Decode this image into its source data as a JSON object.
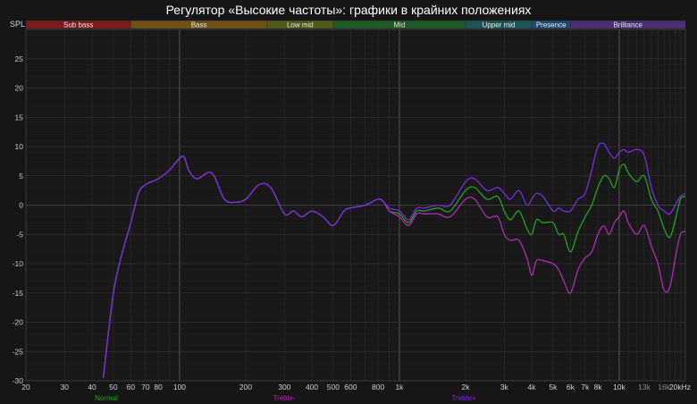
{
  "chart_data": {
    "type": "line",
    "title": "Регулятор «Высокие частоты»: графики в крайних положениях",
    "ylabel": "SPL",
    "xscale": "log",
    "xlim": [
      20,
      20000
    ],
    "ylim": [
      -30,
      30
    ],
    "grid": true,
    "x_ticks": [
      {
        "v": 20,
        "label": "20"
      },
      {
        "v": 30,
        "label": "30"
      },
      {
        "v": 40,
        "label": "40"
      },
      {
        "v": 50,
        "label": "50"
      },
      {
        "v": 60,
        "label": "60"
      },
      {
        "v": 70,
        "label": "70"
      },
      {
        "v": 80,
        "label": "80"
      },
      {
        "v": 100,
        "label": "100"
      },
      {
        "v": 200,
        "label": "200"
      },
      {
        "v": 300,
        "label": "300"
      },
      {
        "v": 400,
        "label": "400"
      },
      {
        "v": 500,
        "label": "500"
      },
      {
        "v": 600,
        "label": "600"
      },
      {
        "v": 800,
        "label": "800"
      },
      {
        "v": 1000,
        "label": "1k"
      },
      {
        "v": 2000,
        "label": "2k"
      },
      {
        "v": 3000,
        "label": "3k"
      },
      {
        "v": 4000,
        "label": "4k"
      },
      {
        "v": 5000,
        "label": "5k"
      },
      {
        "v": 6000,
        "label": "6k"
      },
      {
        "v": 7000,
        "label": "7k"
      },
      {
        "v": 8000,
        "label": "8k"
      },
      {
        "v": 10000,
        "label": "10k"
      },
      {
        "v": 13000,
        "label": "13k"
      },
      {
        "v": 16000,
        "label": "16k"
      },
      {
        "v": 20000,
        "label": "20kHz"
      }
    ],
    "y_ticks": [
      25,
      20,
      15,
      10,
      5,
      0,
      -5,
      -10,
      -15,
      -20,
      -25,
      -30
    ],
    "bands": [
      {
        "name": "Sub bass",
        "from": 20,
        "to": 60,
        "color": "#7a1c1c"
      },
      {
        "name": "Bass",
        "from": 60,
        "to": 250,
        "color": "#6e5214"
      },
      {
        "name": "Low mid",
        "from": 250,
        "to": 500,
        "color": "#4e5a18"
      },
      {
        "name": "Mid",
        "from": 500,
        "to": 2000,
        "color": "#1d5a24"
      },
      {
        "name": "Upper mid",
        "from": 2000,
        "to": 4000,
        "color": "#1d5458"
      },
      {
        "name": "Presence",
        "from": 4000,
        "to": 6000,
        "color": "#1e4a72"
      },
      {
        "name": "Brilliance",
        "from": 6000,
        "to": 20000,
        "color": "#4a2f72"
      }
    ],
    "series": [
      {
        "name": "Normal",
        "color": "#1fa51f",
        "points": [
          [
            45,
            -29.5
          ],
          [
            50,
            -15
          ],
          [
            55,
            -8
          ],
          [
            60,
            -3
          ],
          [
            65,
            2
          ],
          [
            70,
            3.5
          ],
          [
            80,
            4.5
          ],
          [
            90,
            6
          ],
          [
            100,
            8
          ],
          [
            105,
            8.2
          ],
          [
            110,
            6
          ],
          [
            120,
            4.5
          ],
          [
            140,
            5.5
          ],
          [
            160,
            1
          ],
          [
            180,
            0.5
          ],
          [
            200,
            1
          ],
          [
            230,
            3.5
          ],
          [
            260,
            3
          ],
          [
            300,
            -1.5
          ],
          [
            330,
            -1
          ],
          [
            360,
            -2
          ],
          [
            400,
            -1
          ],
          [
            450,
            -2
          ],
          [
            500,
            -3.5
          ],
          [
            560,
            -1
          ],
          [
            600,
            -0.5
          ],
          [
            700,
            0
          ],
          [
            800,
            1
          ],
          [
            850,
            0.5
          ],
          [
            900,
            -1
          ],
          [
            1000,
            -1.5
          ],
          [
            1100,
            -3
          ],
          [
            1200,
            -1
          ],
          [
            1300,
            -1
          ],
          [
            1500,
            -0.5
          ],
          [
            1700,
            -1
          ],
          [
            2000,
            2.5
          ],
          [
            2200,
            3
          ],
          [
            2500,
            1
          ],
          [
            2800,
            1.5
          ],
          [
            3000,
            -1
          ],
          [
            3200,
            -2.5
          ],
          [
            3500,
            -1
          ],
          [
            3800,
            -4
          ],
          [
            4000,
            -5
          ],
          [
            4200,
            -2.5
          ],
          [
            4500,
            -3
          ],
          [
            5000,
            -3
          ],
          [
            5300,
            -5
          ],
          [
            5600,
            -5
          ],
          [
            6000,
            -8
          ],
          [
            6500,
            -4.5
          ],
          [
            7000,
            -2
          ],
          [
            7500,
            0
          ],
          [
            8000,
            3
          ],
          [
            8500,
            5
          ],
          [
            9000,
            4.5
          ],
          [
            9500,
            3
          ],
          [
            10000,
            6
          ],
          [
            10500,
            7
          ],
          [
            11000,
            5.5
          ],
          [
            12000,
            4
          ],
          [
            13000,
            5
          ],
          [
            14000,
            1
          ],
          [
            15000,
            -1
          ],
          [
            16000,
            -4
          ],
          [
            17000,
            -5.5
          ],
          [
            18000,
            -2.5
          ],
          [
            19000,
            1
          ],
          [
            20000,
            1.5
          ]
        ]
      },
      {
        "name": "Treble-",
        "color": "#b229b5",
        "points": [
          [
            45,
            -29.5
          ],
          [
            50,
            -15
          ],
          [
            55,
            -8
          ],
          [
            60,
            -3
          ],
          [
            65,
            2
          ],
          [
            70,
            3.5
          ],
          [
            80,
            4.5
          ],
          [
            90,
            6
          ],
          [
            100,
            8
          ],
          [
            105,
            8.2
          ],
          [
            110,
            6
          ],
          [
            120,
            4.5
          ],
          [
            140,
            5.5
          ],
          [
            160,
            1
          ],
          [
            180,
            0.5
          ],
          [
            200,
            1
          ],
          [
            230,
            3.5
          ],
          [
            260,
            3
          ],
          [
            300,
            -1.5
          ],
          [
            330,
            -1
          ],
          [
            360,
            -2
          ],
          [
            400,
            -1
          ],
          [
            450,
            -2
          ],
          [
            500,
            -3.5
          ],
          [
            560,
            -1
          ],
          [
            600,
            -0.5
          ],
          [
            700,
            0
          ],
          [
            800,
            1
          ],
          [
            850,
            0.5
          ],
          [
            900,
            -1
          ],
          [
            1000,
            -2
          ],
          [
            1100,
            -3.5
          ],
          [
            1200,
            -1.5
          ],
          [
            1300,
            -1.5
          ],
          [
            1500,
            -1.5
          ],
          [
            1700,
            -2
          ],
          [
            2000,
            1
          ],
          [
            2200,
            1
          ],
          [
            2500,
            -2
          ],
          [
            2800,
            -2
          ],
          [
            3000,
            -5
          ],
          [
            3200,
            -6
          ],
          [
            3500,
            -6
          ],
          [
            3800,
            -9
          ],
          [
            4000,
            -12
          ],
          [
            4200,
            -9.5
          ],
          [
            4500,
            -9.5
          ],
          [
            5000,
            -10
          ],
          [
            5300,
            -11
          ],
          [
            5600,
            -13
          ],
          [
            6000,
            -15
          ],
          [
            6500,
            -11
          ],
          [
            7000,
            -9
          ],
          [
            7500,
            -8
          ],
          [
            8000,
            -5
          ],
          [
            8500,
            -3.5
          ],
          [
            9000,
            -5
          ],
          [
            9500,
            -3
          ],
          [
            10000,
            -2
          ],
          [
            10500,
            -1
          ],
          [
            11000,
            -3
          ],
          [
            12000,
            -5
          ],
          [
            13000,
            -3.5
          ],
          [
            14000,
            -7
          ],
          [
            15000,
            -10
          ],
          [
            16000,
            -14.5
          ],
          [
            17000,
            -14
          ],
          [
            18000,
            -9
          ],
          [
            19000,
            -5
          ],
          [
            20000,
            -4.5
          ]
        ]
      },
      {
        "name": "Treble+",
        "color": "#7a2ce0",
        "points": [
          [
            45,
            -29.5
          ],
          [
            50,
            -15
          ],
          [
            55,
            -8
          ],
          [
            60,
            -3
          ],
          [
            65,
            2
          ],
          [
            70,
            3.5
          ],
          [
            80,
            4.5
          ],
          [
            90,
            6
          ],
          [
            100,
            8
          ],
          [
            105,
            8.2
          ],
          [
            110,
            6
          ],
          [
            120,
            4.5
          ],
          [
            140,
            5.5
          ],
          [
            160,
            1
          ],
          [
            180,
            0.5
          ],
          [
            200,
            1
          ],
          [
            230,
            3.5
          ],
          [
            260,
            3
          ],
          [
            300,
            -1.5
          ],
          [
            330,
            -1
          ],
          [
            360,
            -2
          ],
          [
            400,
            -1
          ],
          [
            450,
            -2
          ],
          [
            500,
            -3.5
          ],
          [
            560,
            -1
          ],
          [
            600,
            -0.5
          ],
          [
            700,
            0
          ],
          [
            800,
            1
          ],
          [
            850,
            0.5
          ],
          [
            900,
            -0.5
          ],
          [
            1000,
            -1
          ],
          [
            1100,
            -2.5
          ],
          [
            1200,
            -0.5
          ],
          [
            1300,
            -0.5
          ],
          [
            1500,
            0
          ],
          [
            1700,
            0
          ],
          [
            2000,
            4
          ],
          [
            2200,
            4.5
          ],
          [
            2500,
            2.5
          ],
          [
            2800,
            3
          ],
          [
            3000,
            2
          ],
          [
            3200,
            1
          ],
          [
            3500,
            2.5
          ],
          [
            3800,
            0
          ],
          [
            4000,
            1
          ],
          [
            4200,
            2
          ],
          [
            4500,
            1.5
          ],
          [
            5000,
            -1
          ],
          [
            5300,
            -0.5
          ],
          [
            5600,
            -1
          ],
          [
            6000,
            -1
          ],
          [
            6500,
            1
          ],
          [
            7000,
            2
          ],
          [
            7500,
            6
          ],
          [
            8000,
            10
          ],
          [
            8500,
            10.5
          ],
          [
            9000,
            9
          ],
          [
            9500,
            8
          ],
          [
            10000,
            9
          ],
          [
            10500,
            9.5
          ],
          [
            11000,
            9
          ],
          [
            12000,
            9.5
          ],
          [
            13000,
            8.5
          ],
          [
            14000,
            3
          ],
          [
            15000,
            0
          ],
          [
            16000,
            -1
          ],
          [
            17000,
            -1.5
          ],
          [
            18000,
            0
          ],
          [
            19000,
            1.5
          ],
          [
            20000,
            2
          ]
        ]
      }
    ]
  }
}
